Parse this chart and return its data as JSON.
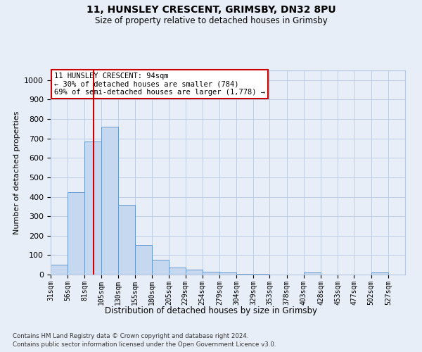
{
  "title_line1": "11, HUNSLEY CRESCENT, GRIMSBY, DN32 8PU",
  "title_line2": "Size of property relative to detached houses in Grimsby",
  "xlabel": "Distribution of detached houses by size in Grimsby",
  "ylabel": "Number of detached properties",
  "footnote1": "Contains HM Land Registry data © Crown copyright and database right 2024.",
  "footnote2": "Contains public sector information licensed under the Open Government Licence v3.0.",
  "annotation_title": "11 HUNSLEY CRESCENT: 94sqm",
  "annotation_line2": "← 30% of detached houses are smaller (784)",
  "annotation_line3": "69% of semi-detached houses are larger (1,778) →",
  "bar_color": "#c5d8f0",
  "bar_edge_color": "#6699cc",
  "vline_color": "#cc0000",
  "vline_x": 94,
  "categories": [
    "31sqm",
    "56sqm",
    "81sqm",
    "105sqm",
    "130sqm",
    "155sqm",
    "180sqm",
    "205sqm",
    "229sqm",
    "254sqm",
    "279sqm",
    "304sqm",
    "329sqm",
    "353sqm",
    "378sqm",
    "403sqm",
    "428sqm",
    "453sqm",
    "477sqm",
    "502sqm",
    "527sqm"
  ],
  "bin_edges": [
    31,
    56,
    81,
    105,
    130,
    155,
    180,
    205,
    229,
    254,
    279,
    304,
    329,
    353,
    378,
    403,
    428,
    453,
    477,
    502,
    527,
    552
  ],
  "bar_heights": [
    50,
    422,
    685,
    760,
    357,
    153,
    75,
    37,
    25,
    13,
    10,
    5,
    5,
    0,
    0,
    10,
    0,
    0,
    0,
    10,
    0
  ],
  "ylim": [
    0,
    1050
  ],
  "yticks": [
    0,
    100,
    200,
    300,
    400,
    500,
    600,
    700,
    800,
    900,
    1000
  ],
  "bg_color": "#e8eef8",
  "plot_bg_color": "#e8eef8",
  "grid_color": "#b8c8de",
  "annotation_box_color": "#ffffff",
  "annotation_box_edge": "#cc0000"
}
